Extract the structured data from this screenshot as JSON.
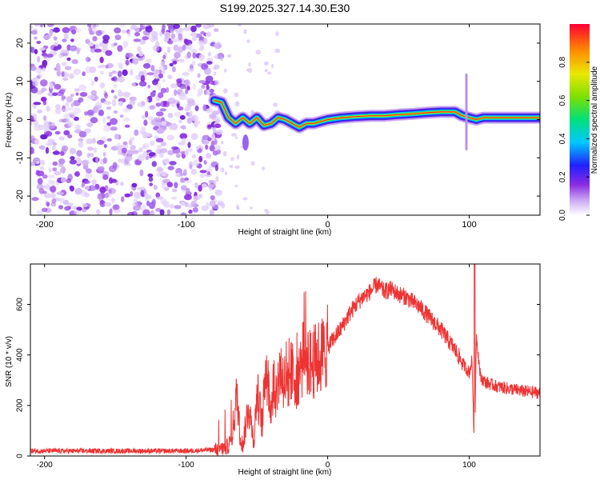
{
  "title": "S199.2025.327.14.30.E30",
  "chart_data": [
    {
      "type": "heatmap",
      "xlabel": "Height of straight line (km)",
      "ylabel": "Frequency (Hz)",
      "xlim": [
        -210,
        150
      ],
      "ylim": [
        -25,
        25
      ],
      "xticks": [
        -200,
        -100,
        0,
        100
      ],
      "yticks": [
        -20,
        -10,
        0,
        10,
        20
      ],
      "noise_region_x": [
        -210,
        -80
      ],
      "ridge": {
        "x": [
          -80,
          -75,
          -70,
          -65,
          -60,
          -55,
          -50,
          -45,
          -40,
          -35,
          -30,
          -25,
          -20,
          -15,
          -10,
          -5,
          0,
          10,
          20,
          30,
          40,
          50,
          60,
          70,
          80,
          90,
          95,
          100,
          105,
          110,
          120,
          130,
          140,
          150
        ],
        "y": [
          5.0,
          4.5,
          0.5,
          -1.0,
          0.5,
          -1.0,
          0.5,
          -1.5,
          -1.0,
          0.5,
          0.0,
          -1.0,
          -2.0,
          -1.0,
          -1.0,
          -0.5,
          0.0,
          0.5,
          0.8,
          1.0,
          1.0,
          1.3,
          1.5,
          1.8,
          2.0,
          2.0,
          1.0,
          0.5,
          0.0,
          0.5,
          0.5,
          0.5,
          0.5,
          0.5
        ]
      },
      "colorbar": {
        "label": "Normalized spectral amplitude",
        "range": [
          0.0,
          1.0
        ],
        "ticks": [
          0.0,
          0.2,
          0.4,
          0.6,
          0.8
        ]
      }
    },
    {
      "type": "line",
      "xlabel": "Height of straight line (km)",
      "ylabel": "SNR (10 * v/v)",
      "xlim": [
        -210,
        150
      ],
      "ylim": [
        0,
        760
      ],
      "xticks": [
        -200,
        -100,
        0,
        100
      ],
      "yticks": [
        0,
        200,
        400,
        600
      ],
      "color": "#ee3333",
      "series": [
        {
          "name": "SNR",
          "x": [
            -210,
            -100,
            -80,
            -72,
            -68,
            -64,
            -62,
            -60,
            -56,
            -52,
            -50,
            -46,
            -44,
            -40,
            -38,
            -36,
            -34,
            -30,
            -26,
            -22,
            -18,
            -16,
            -12,
            -8,
            -4,
            0,
            5,
            10,
            15,
            20,
            25,
            30,
            35,
            40,
            45,
            50,
            55,
            60,
            65,
            70,
            75,
            80,
            85,
            90,
            95,
            100,
            102,
            103,
            104,
            105,
            108,
            112,
            120,
            130,
            140,
            150
          ],
          "y": [
            20,
            20,
            25,
            30,
            60,
            250,
            90,
            40,
            200,
            60,
            260,
            120,
            380,
            180,
            300,
            240,
            350,
            290,
            330,
            310,
            370,
            420,
            360,
            380,
            400,
            430,
            470,
            510,
            560,
            600,
            630,
            650,
            680,
            650,
            660,
            640,
            630,
            610,
            590,
            560,
            530,
            500,
            460,
            420,
            370,
            330,
            380,
            150,
            60,
            480,
            310,
            290,
            275,
            265,
            255,
            250
          ]
        }
      ]
    }
  ]
}
